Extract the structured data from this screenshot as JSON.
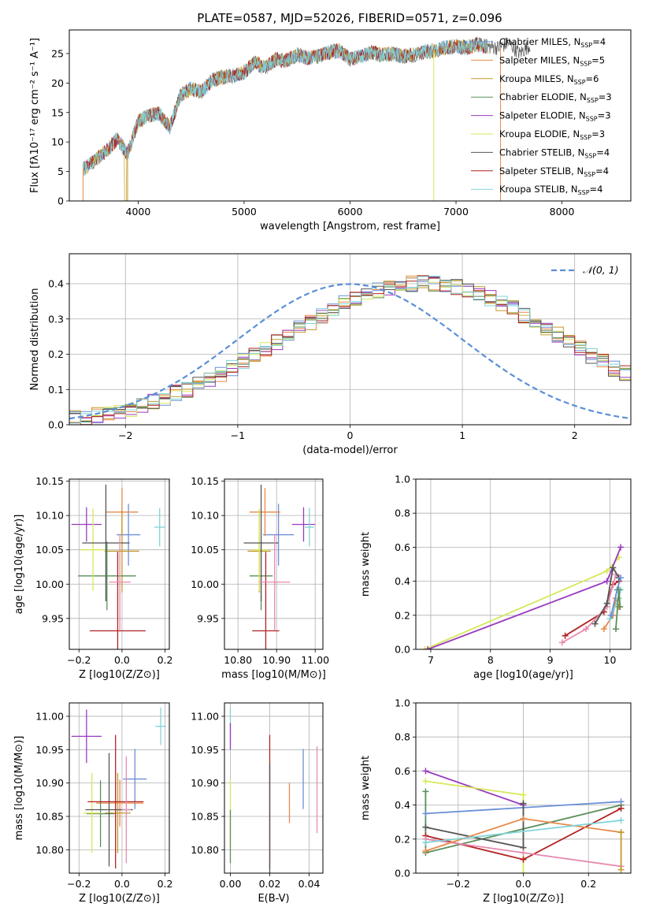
{
  "figure_title": "PLATE=0587, MJD=52026, FIBERID=0571, z=0.096",
  "colors": {
    "Chabrier MILES": "#6b8fd6",
    "Salpeter MILES": "#e8894a",
    "Kroupa MILES": "#c49a2a",
    "Chabrier ELODIE": "#5a8f5a",
    "Salpeter ELODIE": "#9b3bbf",
    "Kroupa ELODIE": "#d7e85a",
    "Chabrier STELIB": "#555555",
    "Salpeter STELIB": "#b22222",
    "Kroupa STELIB": "#7fd4d8",
    "norm": "#5b8fd6",
    "pink": "#e88ab0",
    "orange": "#e07b20"
  },
  "chart_data": [
    {
      "type": "line",
      "name": "spectrum",
      "xlabel": "wavelength [Angstrom, rest frame]",
      "ylabel": "Flux [fλ10⁻¹⁷ erg cm⁻² s⁻¹ A⁻¹]",
      "xlim": [
        3350,
        8650
      ],
      "ylim": [
        0,
        29
      ],
      "xticks": [
        4000,
        5000,
        6000,
        7000,
        8000
      ],
      "yticks": [
        0,
        5,
        10,
        15,
        20,
        25
      ],
      "x": [
        3500,
        3600,
        3700,
        3800,
        3900,
        4000,
        4100,
        4200,
        4300,
        4400,
        4500,
        4600,
        4700,
        4800,
        4900,
        5000,
        5100,
        5200,
        5300,
        5400,
        5500,
        5600,
        5700,
        5800,
        5900,
        6000,
        6100,
        6200,
        6300,
        6400,
        6500,
        6600,
        6700,
        6800,
        6900,
        7000,
        7100,
        7200,
        7300,
        7400,
        7500,
        7600,
        7700
      ],
      "y": [
        5.5,
        7.0,
        8.5,
        10.5,
        8.0,
        13.5,
        14.5,
        14.8,
        12.5,
        18.0,
        19.0,
        18.5,
        20.5,
        21.0,
        21.2,
        21.8,
        23.5,
        22.5,
        24.0,
        23.8,
        24.8,
        24.2,
        24.5,
        25.2,
        25.5,
        24.0,
        24.5,
        25.2,
        24.8,
        25.0,
        24.5,
        24.8,
        25.3,
        25.5,
        26.0,
        26.2,
        26.0,
        26.5,
        26.2,
        26.0,
        26.8,
        25.0,
        26.5
      ],
      "legend": [
        {
          "label": "Chabrier MILES, N",
          "sub": "SSP",
          "eq": "=4"
        },
        {
          "label": "Salpeter MILES, N",
          "sub": "SSP",
          "eq": "=5"
        },
        {
          "label": "Kroupa MILES, N",
          "sub": "SSP",
          "eq": "=6"
        },
        {
          "label": "Chabrier ELODIE, N",
          "sub": "SSP",
          "eq": "=3"
        },
        {
          "label": "Salpeter ELODIE, N",
          "sub": "SSP",
          "eq": "=3"
        },
        {
          "label": "Kroupa ELODIE, N",
          "sub": "SSP",
          "eq": "=3"
        },
        {
          "label": "Chabrier STELIB, N",
          "sub": "SSP",
          "eq": "=4"
        },
        {
          "label": "Salpeter STELIB, N",
          "sub": "SSP",
          "eq": "=4"
        },
        {
          "label": "Kroupa STELIB, N",
          "sub": "SSP",
          "eq": "=4"
        }
      ],
      "legend_placement": "right",
      "grid": false
    },
    {
      "type": "line",
      "name": "residual-histogram",
      "xlabel": "(data-model)/error",
      "ylabel": "Normed distribution",
      "xlim": [
        -2.5,
        2.5
      ],
      "ylim": [
        0,
        0.485
      ],
      "xticks": [
        -2,
        -1,
        0,
        1,
        2
      ],
      "yticks": [
        0.0,
        0.1,
        0.2,
        0.3,
        0.4
      ],
      "bin_width": 0.1,
      "bin_edges_start": -2.5,
      "hist_base": [
        0.02,
        0.022,
        0.028,
        0.035,
        0.04,
        0.045,
        0.055,
        0.065,
        0.075,
        0.09,
        0.1,
        0.115,
        0.13,
        0.145,
        0.16,
        0.18,
        0.195,
        0.215,
        0.235,
        0.255,
        0.275,
        0.29,
        0.31,
        0.33,
        0.345,
        0.36,
        0.37,
        0.38,
        0.39,
        0.395,
        0.4,
        0.405,
        0.4,
        0.395,
        0.39,
        0.385,
        0.375,
        0.36,
        0.345,
        0.33,
        0.31,
        0.29,
        0.275,
        0.255,
        0.235,
        0.215,
        0.195,
        0.178,
        0.16,
        0.145,
        0.13,
        0.115,
        0.1,
        0.088,
        0.075,
        0.065,
        0.055,
        0.045,
        0.038,
        0.03
      ],
      "series_names": [
        "Chabrier MILES",
        "Salpeter MILES",
        "Kroupa MILES",
        "Chabrier ELODIE",
        "Salpeter ELODIE",
        "Kroupa ELODIE",
        "Chabrier STELIB",
        "Salpeter STELIB",
        "Kroupa STELIB"
      ],
      "legend": [
        {
          "label": "𝒩(0, 1)"
        }
      ],
      "grid": true
    },
    {
      "type": "scatter",
      "name": "age-vs-Z",
      "xlabel": "Z [log10(Z/Z⊙)]",
      "ylabel": "age  [log10(age/yr)]",
      "xlim": [
        -0.245,
        0.22
      ],
      "ylim": [
        9.905,
        10.153
      ],
      "xticks": [
        -0.2,
        0.0,
        0.2
      ],
      "yticks": [
        9.95,
        10.0,
        10.05,
        10.1,
        10.15
      ],
      "points": [
        {
          "s": "Chabrier MILES",
          "x": 0.03,
          "y": 10.072,
          "xe": 0.055,
          "ye": 0.045
        },
        {
          "s": "Salpeter MILES",
          "x": 0.0,
          "y": 10.105,
          "xe": 0.075,
          "ye": 0.035
        },
        {
          "s": "Kroupa MILES",
          "x": 0.0,
          "y": 10.048,
          "xe": 0.08,
          "ye": 0.06
        },
        {
          "s": "Chabrier ELODIE",
          "x": -0.07,
          "y": 10.012,
          "xe": 0.135,
          "ye": 0.05
        },
        {
          "s": "Salpeter ELODIE",
          "x": -0.165,
          "y": 10.087,
          "xe": 0.07,
          "ye": 0.025
        },
        {
          "s": "Kroupa ELODIE",
          "x": -0.135,
          "y": 10.05,
          "xe": 0.06,
          "ye": 0.06
        },
        {
          "s": "Chabrier STELIB",
          "x": -0.075,
          "y": 10.06,
          "xe": 0.11,
          "ye": 0.085
        },
        {
          "s": "Salpeter STELIB",
          "x": -0.02,
          "y": 9.932,
          "xe": 0.13,
          "ye": 0.115
        },
        {
          "s": "Kroupa STELIB",
          "x": 0.175,
          "y": 10.083,
          "xe": 0.025,
          "ye": 0.028
        },
        {
          "s": "pink",
          "x": -0.01,
          "y": 10.003,
          "xe": 0.05,
          "ye": 0.07
        }
      ],
      "grid": true
    },
    {
      "type": "scatter",
      "name": "age-vs-mass",
      "xlabel": "mass [log10(M/M⊙)]",
      "ylabel": "",
      "xlim": [
        10.765,
        11.02
      ],
      "ylim": [
        9.905,
        10.153
      ],
      "xticks": [
        10.8,
        10.9,
        11.0
      ],
      "yticks": [
        9.95,
        10.0,
        10.05,
        10.1,
        10.15
      ],
      "points": [
        {
          "s": "Chabrier MILES",
          "x": 10.905,
          "y": 10.072,
          "xe": 0.04,
          "ye": 0.045
        },
        {
          "s": "Salpeter MILES",
          "x": 10.87,
          "y": 10.105,
          "xe": 0.04,
          "ye": 0.035
        },
        {
          "s": "Kroupa MILES",
          "x": 10.855,
          "y": 10.048,
          "xe": 0.03,
          "ye": 0.06
        },
        {
          "s": "Chabrier ELODIE",
          "x": 10.86,
          "y": 10.012,
          "xe": 0.03,
          "ye": 0.05
        },
        {
          "s": "Salpeter ELODIE",
          "x": 10.97,
          "y": 10.087,
          "xe": 0.03,
          "ye": 0.025
        },
        {
          "s": "Kroupa ELODIE",
          "x": 10.855,
          "y": 10.05,
          "xe": 0.02,
          "ye": 0.06
        },
        {
          "s": "Chabrier STELIB",
          "x": 10.86,
          "y": 10.06,
          "xe": 0.045,
          "ye": 0.085
        },
        {
          "s": "Salpeter STELIB",
          "x": 10.872,
          "y": 9.932,
          "xe": 0.035,
          "ye": 0.115
        },
        {
          "s": "Kroupa STELIB",
          "x": 10.985,
          "y": 10.083,
          "xe": 0.012,
          "ye": 0.028
        },
        {
          "s": "pink",
          "x": 10.895,
          "y": 10.003,
          "xe": 0.04,
          "ye": 0.07
        }
      ],
      "grid": true
    },
    {
      "type": "line",
      "name": "mass-weight-vs-age",
      "xlabel": "age  [log10(age/yr)]",
      "ylabel": "mass weight",
      "xlim": [
        6.75,
        10.35
      ],
      "ylim": [
        0,
        1.0
      ],
      "xticks": [
        7,
        8,
        9,
        10
      ],
      "yticks": [
        0.0,
        0.2,
        0.4,
        0.6,
        0.8,
        1.0
      ],
      "series": [
        {
          "name": "Kroupa ELODIE",
          "x": [
            6.9,
            9.95,
            10.15
          ],
          "y": [
            0.0,
            0.46,
            0.54
          ]
        },
        {
          "name": "Salpeter ELODIE",
          "x": [
            6.95,
            9.95,
            10.18
          ],
          "y": [
            0.0,
            0.4,
            0.6
          ]
        },
        {
          "name": "Salpeter STELIB",
          "x": [
            9.25,
            9.9,
            10.05,
            10.15
          ],
          "y": [
            0.08,
            0.22,
            0.38,
            0.4
          ]
        },
        {
          "name": "pink",
          "x": [
            9.2,
            9.6,
            9.95,
            10.1
          ],
          "y": [
            0.04,
            0.12,
            0.25,
            0.44
          ]
        },
        {
          "name": "Chabrier STELIB",
          "x": [
            9.75,
            9.95,
            10.05,
            10.15
          ],
          "y": [
            0.15,
            0.27,
            0.48,
            0.42
          ]
        },
        {
          "name": "Salpeter MILES",
          "x": [
            9.9,
            10.05,
            10.1,
            10.15
          ],
          "y": [
            0.12,
            0.2,
            0.3,
            0.25
          ]
        },
        {
          "name": "Kroupa STELIB",
          "x": [
            10.0,
            10.15,
            10.18
          ],
          "y": [
            0.18,
            0.3,
            0.35
          ]
        },
        {
          "name": "Chabrier MILES",
          "x": [
            10.02,
            10.12,
            10.18
          ],
          "y": [
            0.2,
            0.35,
            0.42
          ]
        },
        {
          "name": "Chabrier ELODIE",
          "x": [
            10.1,
            10.15,
            10.17
          ],
          "y": [
            0.12,
            0.35,
            0.25
          ]
        }
      ],
      "grid": true
    },
    {
      "type": "scatter",
      "name": "mass-vs-Z",
      "xlabel": "Z [log10(Z/Z⊙)]",
      "ylabel": "mass [log10(M/M⊙)]",
      "xlim": [
        -0.245,
        0.22
      ],
      "ylim": [
        10.765,
        11.02
      ],
      "xticks": [
        -0.2,
        0.0,
        0.2
      ],
      "yticks": [
        10.8,
        10.85,
        10.9,
        10.95,
        11.0
      ],
      "points": [
        {
          "s": "Chabrier MILES",
          "x": 0.06,
          "y": 10.906,
          "xe": 0.055,
          "ye": 0.045
        },
        {
          "s": "Salpeter MILES",
          "x": -0.01,
          "y": 10.87,
          "xe": 0.11,
          "ye": 0.035
        },
        {
          "s": "Kroupa MILES",
          "x": -0.02,
          "y": 10.855,
          "xe": 0.06,
          "ye": 0.06
        },
        {
          "s": "Chabrier ELODIE",
          "x": -0.1,
          "y": 10.854,
          "xe": 0.065,
          "ye": 0.05
        },
        {
          "s": "Salpeter ELODIE",
          "x": -0.165,
          "y": 10.97,
          "xe": 0.07,
          "ye": 0.04
        },
        {
          "s": "Kroupa ELODIE",
          "x": -0.14,
          "y": 10.855,
          "xe": 0.04,
          "ye": 0.06
        },
        {
          "s": "Chabrier STELIB",
          "x": -0.06,
          "y": 10.86,
          "xe": 0.11,
          "ye": 0.085
        },
        {
          "s": "Salpeter STELIB",
          "x": -0.03,
          "y": 10.872,
          "xe": 0.13,
          "ye": 0.1
        },
        {
          "s": "Kroupa STELIB",
          "x": 0.18,
          "y": 10.985,
          "xe": 0.025,
          "ye": 0.028
        },
        {
          "s": "pink",
          "x": 0.02,
          "y": 10.86,
          "xe": 0.02,
          "ye": 0.08
        }
      ],
      "grid": true
    },
    {
      "type": "scatter",
      "name": "mass-vs-EBV",
      "xlabel": "E(B-V)",
      "ylabel": "",
      "xlim": [
        -0.003,
        0.047
      ],
      "ylim": [
        10.765,
        11.02
      ],
      "xticks": [
        0.0,
        0.02,
        0.04
      ],
      "yticks": [
        10.8,
        10.85,
        10.9,
        10.95,
        11.0
      ],
      "points": [
        {
          "s": "Kroupa STELIB",
          "x": 0.0,
          "y": 10.985,
          "xe": 0,
          "ye": 0.028
        },
        {
          "s": "Salpeter ELODIE",
          "x": 0.0,
          "y": 10.97,
          "xe": 0,
          "ye": 0.02
        },
        {
          "s": "Kroupa ELODIE",
          "x": 0.0,
          "y": 10.855,
          "xe": 0,
          "ye": 0.05
        },
        {
          "s": "Chabrier ELODIE",
          "x": 0.0,
          "y": 10.82,
          "xe": 0,
          "ye": 0.04
        },
        {
          "s": "Salpeter STELIB",
          "x": 0.02,
          "y": 10.872,
          "xe": 0,
          "ye": 0.1
        },
        {
          "s": "Chabrier STELIB",
          "x": 0.02,
          "y": 10.83,
          "xe": 0,
          "ye": 0.1
        },
        {
          "s": "Salpeter MILES",
          "x": 0.03,
          "y": 10.87,
          "xe": 0,
          "ye": 0.03
        },
        {
          "s": "Chabrier MILES",
          "x": 0.037,
          "y": 10.906,
          "xe": 0,
          "ye": 0.045
        },
        {
          "s": "pink",
          "x": 0.044,
          "y": 10.89,
          "xe": 0,
          "ye": 0.065
        }
      ],
      "grid": true
    },
    {
      "type": "line",
      "name": "mass-weight-vs-Z",
      "xlabel": "Z [log10(Z/Z⊙)]",
      "ylabel": "mass weight",
      "xlim": [
        -0.33,
        0.33
      ],
      "ylim": [
        0,
        1.0
      ],
      "xticks": [
        -0.2,
        0.0,
        0.2
      ],
      "yticks": [
        0.0,
        0.2,
        0.4,
        0.6,
        0.8,
        1.0
      ],
      "series": [
        {
          "name": "Salpeter ELODIE",
          "x": [
            -0.3,
            0.0
          ],
          "y": [
            0.6,
            0.4
          ]
        },
        {
          "name": "Kroupa ELODIE",
          "x": [
            -0.3,
            0.0,
            0.0
          ],
          "y": [
            0.54,
            0.46,
            0.0
          ]
        },
        {
          "name": "Chabrier ELODIE",
          "x": [
            -0.3,
            -0.3,
            0.3
          ],
          "y": [
            0.48,
            0.12,
            0.4
          ]
        },
        {
          "name": "Chabrier MILES",
          "x": [
            -0.3,
            0.3
          ],
          "y": [
            0.35,
            0.42
          ]
        },
        {
          "name": "Chabrier STELIB",
          "x": [
            -0.3,
            0.0,
            0.0
          ],
          "y": [
            0.27,
            0.15,
            0.41
          ]
        },
        {
          "name": "Salpeter STELIB",
          "x": [
            -0.3,
            0.0,
            0.3
          ],
          "y": [
            0.22,
            0.08,
            0.38
          ]
        },
        {
          "name": "pink",
          "x": [
            -0.3,
            0.0,
            0.3
          ],
          "y": [
            0.2,
            0.12,
            0.04
          ]
        },
        {
          "name": "Salpeter MILES",
          "x": [
            -0.3,
            0.0,
            0.3
          ],
          "y": [
            0.13,
            0.32,
            0.24
          ]
        },
        {
          "name": "Kroupa STELIB",
          "x": [
            -0.3,
            0.3
          ],
          "y": [
            0.18,
            0.31
          ]
        },
        {
          "name": "Kroupa MILES",
          "x": [
            0.3,
            0.3
          ],
          "y": [
            0.02,
            0.24
          ]
        }
      ],
      "grid": true
    }
  ]
}
